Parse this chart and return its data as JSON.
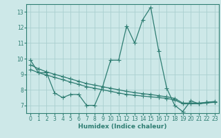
{
  "xlabel": "Humidex (Indice chaleur)",
  "background_color": "#cde8e8",
  "grid_color": "#aad0d0",
  "line_color": "#2e7d72",
  "xlim": [
    -0.5,
    23.5
  ],
  "ylim": [
    6.5,
    13.5
  ],
  "yticks": [
    7,
    8,
    9,
    10,
    11,
    12,
    13
  ],
  "xticks": [
    0,
    1,
    2,
    3,
    4,
    5,
    6,
    7,
    8,
    9,
    10,
    11,
    12,
    13,
    14,
    15,
    16,
    17,
    18,
    19,
    20,
    21,
    22,
    23
  ],
  "x": [
    0,
    1,
    2,
    3,
    4,
    5,
    6,
    7,
    8,
    9,
    10,
    11,
    12,
    13,
    14,
    15,
    16,
    17,
    18,
    19,
    20,
    21,
    22,
    23
  ],
  "y_main": [
    9.9,
    9.1,
    9.1,
    7.8,
    7.5,
    7.7,
    7.7,
    7.0,
    7.0,
    8.2,
    9.9,
    9.9,
    12.1,
    11.0,
    12.5,
    13.3,
    10.5,
    8.1,
    7.0,
    6.6,
    7.3,
    7.1,
    7.2,
    7.2
  ],
  "y_trend1": [
    9.3,
    9.1,
    8.95,
    8.8,
    8.65,
    8.5,
    8.35,
    8.2,
    8.1,
    8.0,
    7.9,
    7.8,
    7.7,
    7.65,
    7.6,
    7.55,
    7.5,
    7.45,
    7.35,
    7.1,
    7.1,
    7.1,
    7.15,
    7.2
  ],
  "y_trend2": [
    9.6,
    9.35,
    9.15,
    9.0,
    8.85,
    8.7,
    8.55,
    8.4,
    8.3,
    8.2,
    8.1,
    8.0,
    7.9,
    7.82,
    7.75,
    7.7,
    7.62,
    7.55,
    7.45,
    7.15,
    7.15,
    7.15,
    7.2,
    7.25
  ]
}
